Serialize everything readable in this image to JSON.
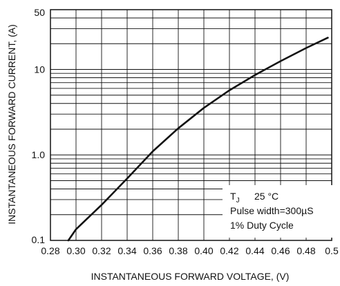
{
  "chart_data": {
    "type": "line",
    "xlabel": "INSTANTANEOUS FORWARD VOLTAGE, (V)",
    "ylabel": "INSTANTANEOUS FORWARD CURRENT, (A)",
    "xlim": [
      0.28,
      0.5
    ],
    "ylim": [
      0.1,
      50
    ],
    "yscale": "log",
    "grid": true,
    "x_ticks": [
      0.28,
      0.3,
      0.32,
      0.34,
      0.36,
      0.38,
      0.4,
      0.42,
      0.44,
      0.46,
      0.48,
      0.5
    ],
    "x_tick_labels": [
      "0.28",
      "0.30",
      "0.32",
      "0.34",
      "0.36",
      "0.38",
      "0.40",
      "0.42",
      "0.44",
      "0.46",
      "0.48",
      "0.5"
    ],
    "y_ticks": [
      0.1,
      1.0,
      10,
      50
    ],
    "y_tick_labels": [
      "0.1",
      "1.0",
      "10",
      "50"
    ],
    "series": [
      {
        "x": [
          0.294,
          0.3,
          0.32,
          0.34,
          0.36,
          0.38,
          0.4,
          0.42,
          0.44,
          0.46,
          0.48,
          0.497
        ],
        "y": [
          0.1,
          0.135,
          0.26,
          0.53,
          1.1,
          2.05,
          3.55,
          5.7,
          8.6,
          12.5,
          17.8,
          23.5
        ]
      }
    ],
    "annotations": {
      "tj_symbol": "T",
      "tj_subscript": "J",
      "tj_value": "25 °C",
      "pulse": "Pulse width=300µS",
      "duty": "1% Duty Cycle"
    },
    "legend_position": "bottom-right",
    "line_color": "#111111"
  }
}
